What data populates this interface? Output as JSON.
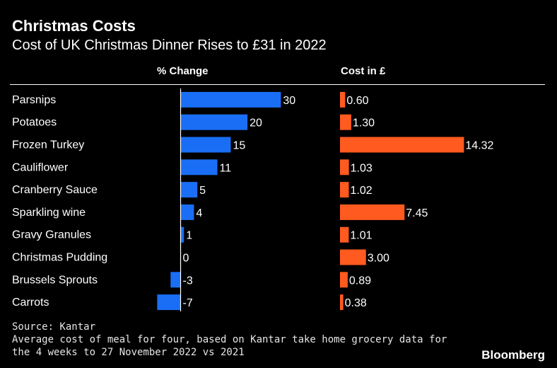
{
  "title": "Christmas Costs",
  "subtitle": "Cost of UK Christmas Dinner Rises to £31 in 2022",
  "source": "Source: Kantar",
  "note": "Average cost of meal for four, based on Kantar take home grocery data for the 4 weeks to 27 November 2022 vs 2021",
  "brand": "Bloomberg",
  "colors": {
    "change_bar": "#1a6ef5",
    "cost_bar": "#ff5a1f",
    "background": "#000000",
    "text": "#ffffff"
  },
  "chart_data": [
    {
      "type": "bar",
      "orientation": "horizontal",
      "title": "% Change",
      "categories": [
        "Parsnips",
        "Potatoes",
        "Frozen Turkey",
        "Cauliflower",
        "Cranberry Sauce",
        "Sparkling wine",
        "Gravy Granules",
        "Christmas Pudding",
        "Brussels Sprouts",
        "Carrots"
      ],
      "values": [
        30,
        20,
        15,
        11,
        5,
        4,
        1,
        0,
        -3,
        -7
      ],
      "labels": [
        "30",
        "20",
        "15",
        "11",
        "5",
        "4",
        "1",
        "0",
        "-3",
        "-7"
      ],
      "xlim": [
        -7,
        30
      ]
    },
    {
      "type": "bar",
      "orientation": "horizontal",
      "title": "Cost in £",
      "categories": [
        "Parsnips",
        "Potatoes",
        "Frozen Turkey",
        "Cauliflower",
        "Cranberry Sauce",
        "Sparkling wine",
        "Gravy Granules",
        "Christmas Pudding",
        "Brussels Sprouts",
        "Carrots"
      ],
      "values": [
        0.6,
        1.3,
        14.32,
        1.03,
        1.02,
        7.45,
        1.01,
        3.0,
        0.89,
        0.38
      ],
      "labels": [
        "0.60",
        "1.30",
        "14.32",
        "1.03",
        "1.02",
        "7.45",
        "1.01",
        "3.00",
        "0.89",
        "0.38"
      ],
      "xlim": [
        0,
        14.32
      ]
    }
  ]
}
